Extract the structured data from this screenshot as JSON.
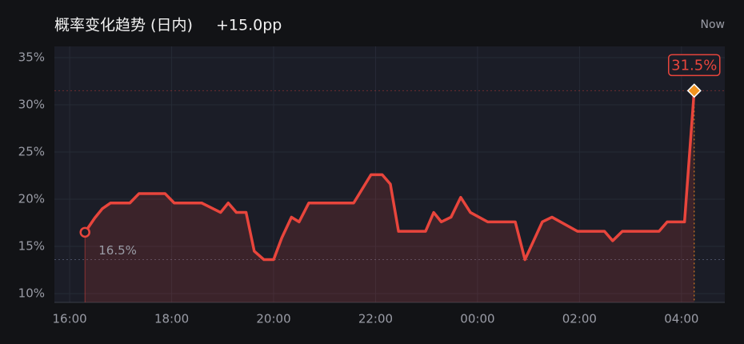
{
  "chart_data": {
    "type": "line",
    "title": "概率变化趋势 (日内)",
    "subtitle": "+15.0pp",
    "annotations": [
      "Now"
    ],
    "x": [
      16.3,
      16.49,
      16.64,
      16.8,
      17.18,
      17.36,
      17.87,
      18.05,
      18.59,
      18.96,
      19.11,
      19.27,
      19.46,
      19.62,
      19.81,
      20.0,
      20.16,
      20.35,
      20.5,
      20.69,
      21.57,
      21.91,
      22.13,
      22.29,
      22.45,
      22.98,
      23.14,
      23.29,
      23.48,
      23.67,
      23.86,
      24.2,
      24.74,
      24.93,
      25.27,
      25.46,
      25.96,
      26.49,
      26.65,
      26.84,
      27.56,
      27.72,
      28.06,
      28.25
    ],
    "series": [
      {
        "color": "#e8453c",
        "values": [
          16.5,
          18.0,
          19.0,
          19.6,
          19.6,
          20.6,
          20.6,
          19.6,
          19.6,
          18.6,
          19.6,
          18.6,
          18.6,
          14.5,
          13.6,
          13.6,
          15.9,
          18.1,
          17.6,
          19.6,
          19.6,
          22.6,
          22.6,
          21.6,
          16.6,
          16.6,
          18.6,
          17.6,
          18.1,
          20.2,
          18.6,
          17.6,
          17.6,
          13.6,
          17.6,
          18.1,
          16.6,
          16.6,
          15.6,
          16.6,
          16.6,
          17.6,
          17.6,
          31.5
        ],
        "value_labels": [
          "16.5%",
          null,
          null,
          null,
          null,
          null,
          null,
          null,
          null,
          null,
          null,
          null,
          null,
          null,
          null,
          null,
          null,
          null,
          null,
          null,
          null,
          null,
          null,
          null,
          null,
          null,
          null,
          null,
          null,
          null,
          null,
          null,
          null,
          null,
          null,
          null,
          null,
          null,
          null,
          null,
          null,
          null,
          null,
          "31.5%"
        ]
      }
    ],
    "xlim": [
      15.7,
      28.85
    ],
    "xticks": [
      {
        "value": 16,
        "label": "16:00"
      },
      {
        "value": 18,
        "label": "18:00"
      },
      {
        "value": 20,
        "label": "20:00"
      },
      {
        "value": 22,
        "label": "22:00"
      },
      {
        "value": 24,
        "label": "00:00"
      },
      {
        "value": 26,
        "label": "02:00"
      },
      {
        "value": 28,
        "label": "04:00"
      }
    ],
    "ylim": [
      9.07,
      36.19
    ],
    "yticks": [
      {
        "value": 10,
        "label": "10%"
      },
      {
        "value": 15,
        "label": "15%"
      },
      {
        "value": 20,
        "label": "20%"
      },
      {
        "value": 25,
        "label": "25%"
      },
      {
        "value": 30,
        "label": "30%"
      },
      {
        "value": 35,
        "label": "35%"
      }
    ],
    "grid": true
  }
}
